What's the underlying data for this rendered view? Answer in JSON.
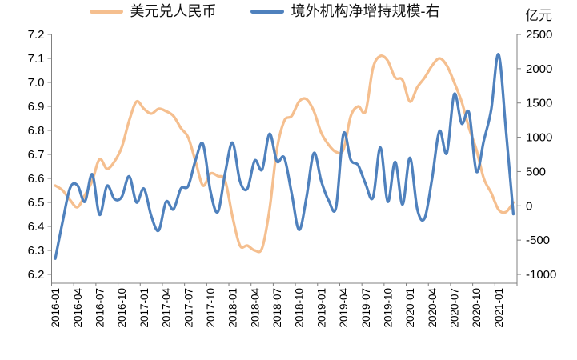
{
  "legend": {
    "items": [
      {
        "label": "美元兑人民币",
        "color": "#F5BF8F"
      },
      {
        "label": "境外机构净增持规模-右",
        "color": "#4F81BD"
      }
    ]
  },
  "right_axis_unit": "亿元",
  "colors": {
    "usd_cny_line": "#F5BF8F",
    "net_increase_line": "#4F81BD",
    "axis": "#808080",
    "tick_text": "#000000"
  },
  "chart_data": {
    "type": "line",
    "title": "",
    "grid": false,
    "legend_position": "top",
    "x": [
      "2016-01",
      "2016-02",
      "2016-03",
      "2016-04",
      "2016-05",
      "2016-06",
      "2016-07",
      "2016-08",
      "2016-09",
      "2016-10",
      "2016-11",
      "2016-12",
      "2017-01",
      "2017-02",
      "2017-03",
      "2017-04",
      "2017-05",
      "2017-06",
      "2017-07",
      "2017-08",
      "2017-09",
      "2017-10",
      "2017-11",
      "2017-12",
      "2018-01",
      "2018-02",
      "2018-03",
      "2018-04",
      "2018-05",
      "2018-06",
      "2018-07",
      "2018-08",
      "2018-09",
      "2018-10",
      "2018-11",
      "2018-12",
      "2019-01",
      "2019-02",
      "2019-03",
      "2019-04",
      "2019-05",
      "2019-06",
      "2019-07",
      "2019-08",
      "2019-09",
      "2019-10",
      "2019-11",
      "2019-12",
      "2020-01",
      "2020-02",
      "2020-03",
      "2020-04",
      "2020-05",
      "2020-06",
      "2020-07",
      "2020-08",
      "2020-09",
      "2020-10",
      "2020-11",
      "2020-12",
      "2021-01",
      "2021-02",
      "2021-03"
    ],
    "x_tick_labels": [
      "2016-01",
      "2016-04",
      "2016-07",
      "2016-10",
      "2017-01",
      "2017-04",
      "2017-07",
      "2017-10",
      "2018-01",
      "2018-04",
      "2018-07",
      "2018-10",
      "2019-01",
      "2019-04",
      "2019-07",
      "2019-10",
      "2020-01",
      "2020-04",
      "2020-07",
      "2020-10",
      "2021-01"
    ],
    "left_axis": {
      "max": 7.2,
      "min": 6.2,
      "step": 0.1,
      "tick_labels": [
        "7.2",
        "7.1",
        "7.0",
        "6.9",
        "6.8",
        "6.7",
        "6.6",
        "6.5",
        "6.4",
        "6.3",
        "6.2"
      ]
    },
    "right_axis": {
      "max": 2500,
      "min": -1000,
      "step": 500,
      "unit": "亿元",
      "tick_labels": [
        "2500",
        "2000",
        "1500",
        "1000",
        "500",
        "0",
        "-500",
        "-1000"
      ]
    },
    "series": [
      {
        "name": "美元兑人民币",
        "axis": "left",
        "color": "#F5BF8F",
        "values": [
          6.57,
          6.55,
          6.51,
          6.48,
          6.53,
          6.59,
          6.68,
          6.64,
          6.67,
          6.73,
          6.84,
          6.92,
          6.89,
          6.87,
          6.89,
          6.88,
          6.86,
          6.81,
          6.77,
          6.67,
          6.57,
          6.62,
          6.61,
          6.59,
          6.44,
          6.32,
          6.32,
          6.3,
          6.31,
          6.47,
          6.72,
          6.84,
          6.86,
          6.92,
          6.93,
          6.88,
          6.79,
          6.74,
          6.71,
          6.72,
          6.86,
          6.9,
          6.88,
          7.06,
          7.11,
          7.09,
          7.02,
          7.01,
          6.92,
          6.98,
          7.02,
          7.07,
          7.1,
          7.07,
          7.0,
          6.92,
          6.81,
          6.72,
          6.6,
          6.54,
          6.47,
          6.46,
          6.5
        ]
      },
      {
        "name": "境外机构净增持规模-右",
        "axis": "right",
        "color": "#4F81BD",
        "values": [
          -770,
          -230,
          260,
          300,
          60,
          460,
          -130,
          290,
          100,
          130,
          430,
          50,
          250,
          -150,
          -360,
          60,
          -50,
          250,
          290,
          670,
          900,
          220,
          -90,
          480,
          920,
          360,
          250,
          660,
          530,
          1050,
          650,
          700,
          180,
          -350,
          120,
          770,
          360,
          80,
          -20,
          1050,
          670,
          590,
          320,
          120,
          850,
          60,
          640,
          20,
          700,
          -50,
          -180,
          400,
          1090,
          770,
          1630,
          1200,
          1360,
          500,
          950,
          1400,
          2210,
          1100,
          -120
        ]
      }
    ]
  }
}
